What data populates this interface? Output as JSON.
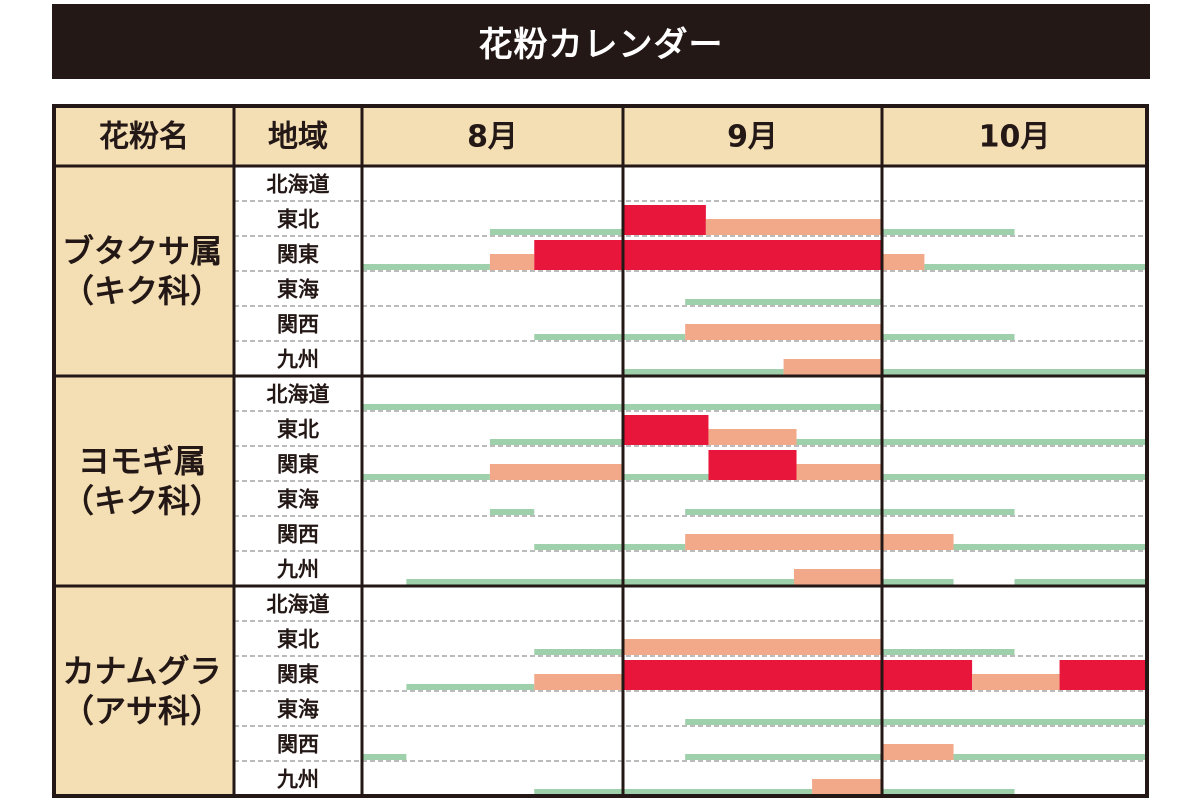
{
  "title": "花粉カレンダー",
  "headers": {
    "name": "花粉名",
    "region": "地域",
    "months": [
      "8月",
      "9月",
      "10月"
    ]
  },
  "colors": {
    "header_bg": "#f4deb4",
    "name_bg": "#f4deb4",
    "title_bg": "#231815",
    "low": "#9ed0ab",
    "mid": "#f2a98a",
    "high": "#e8163a",
    "grid": "#231815"
  },
  "legend_levels": [
    "low",
    "mid",
    "high"
  ],
  "chart_data": {
    "type": "table",
    "title": "花粉カレンダー",
    "months": [
      "8月",
      "9月",
      "10月"
    ],
    "x_unit": "month (0 = start of 8月, 3 = end of 10月)",
    "pollens": [
      {
        "name_lines": [
          "ブタクサ属",
          "（キク科）"
        ],
        "regions": [
          {
            "name": "北海道",
            "bars": []
          },
          {
            "name": "東北",
            "bars": [
              {
                "from": 0.49,
                "to": 1.0,
                "level": "low"
              },
              {
                "from": 1.0,
                "to": 1.32,
                "level": "high"
              },
              {
                "from": 1.32,
                "to": 2.0,
                "level": "mid"
              },
              {
                "from": 2.0,
                "to": 2.5,
                "level": "low"
              }
            ]
          },
          {
            "name": "関東",
            "bars": [
              {
                "from": 0.0,
                "to": 0.49,
                "level": "low"
              },
              {
                "from": 0.49,
                "to": 0.66,
                "level": "mid"
              },
              {
                "from": 0.66,
                "to": 2.0,
                "level": "high"
              },
              {
                "from": 2.0,
                "to": 2.16,
                "level": "mid"
              },
              {
                "from": 2.16,
                "to": 3.0,
                "level": "low"
              }
            ]
          },
          {
            "name": "東海",
            "bars": [
              {
                "from": 1.24,
                "to": 2.0,
                "level": "low"
              }
            ]
          },
          {
            "name": "関西",
            "bars": [
              {
                "from": 0.66,
                "to": 1.24,
                "level": "low"
              },
              {
                "from": 1.24,
                "to": 2.0,
                "level": "mid"
              },
              {
                "from": 2.0,
                "to": 2.5,
                "level": "low"
              }
            ]
          },
          {
            "name": "九州",
            "bars": [
              {
                "from": 1.0,
                "to": 1.62,
                "level": "low"
              },
              {
                "from": 1.62,
                "to": 2.0,
                "level": "mid"
              },
              {
                "from": 2.0,
                "to": 3.0,
                "level": "low"
              }
            ]
          }
        ]
      },
      {
        "name_lines": [
          "ヨモギ属",
          "（キク科）"
        ],
        "regions": [
          {
            "name": "北海道",
            "bars": [
              {
                "from": 0.0,
                "to": 2.0,
                "level": "low"
              }
            ]
          },
          {
            "name": "東北",
            "bars": [
              {
                "from": 0.49,
                "to": 1.0,
                "level": "low"
              },
              {
                "from": 1.0,
                "to": 1.33,
                "level": "high"
              },
              {
                "from": 1.33,
                "to": 1.67,
                "level": "mid"
              },
              {
                "from": 1.67,
                "to": 3.0,
                "level": "low"
              }
            ]
          },
          {
            "name": "関東",
            "bars": [
              {
                "from": 0.0,
                "to": 0.49,
                "level": "low"
              },
              {
                "from": 0.49,
                "to": 1.0,
                "level": "mid"
              },
              {
                "from": 1.0,
                "to": 1.33,
                "level": "low"
              },
              {
                "from": 1.33,
                "to": 1.67,
                "level": "high"
              },
              {
                "from": 1.67,
                "to": 2.0,
                "level": "mid"
              },
              {
                "from": 2.0,
                "to": 3.0,
                "level": "low"
              }
            ]
          },
          {
            "name": "東海",
            "bars": [
              {
                "from": 0.49,
                "to": 0.66,
                "level": "low"
              },
              {
                "from": 1.24,
                "to": 2.5,
                "level": "low"
              }
            ]
          },
          {
            "name": "関西",
            "bars": [
              {
                "from": 0.66,
                "to": 1.24,
                "level": "low"
              },
              {
                "from": 1.24,
                "to": 2.27,
                "level": "mid"
              },
              {
                "from": 2.27,
                "to": 3.0,
                "level": "low"
              }
            ]
          },
          {
            "name": "九州",
            "bars": [
              {
                "from": 0.17,
                "to": 1.66,
                "level": "low"
              },
              {
                "from": 1.66,
                "to": 2.0,
                "level": "mid"
              },
              {
                "from": 2.0,
                "to": 2.27,
                "level": "low"
              },
              {
                "from": 2.5,
                "to": 3.0,
                "level": "low"
              }
            ]
          }
        ]
      },
      {
        "name_lines": [
          "カナムグラ",
          "（アサ科）"
        ],
        "regions": [
          {
            "name": "北海道",
            "bars": []
          },
          {
            "name": "東北",
            "bars": [
              {
                "from": 0.66,
                "to": 1.0,
                "level": "low"
              },
              {
                "from": 1.0,
                "to": 2.0,
                "level": "mid"
              },
              {
                "from": 2.0,
                "to": 2.5,
                "level": "low"
              }
            ]
          },
          {
            "name": "関東",
            "bars": [
              {
                "from": 0.17,
                "to": 0.66,
                "level": "low"
              },
              {
                "from": 0.66,
                "to": 1.0,
                "level": "mid"
              },
              {
                "from": 1.0,
                "to": 2.34,
                "level": "high"
              },
              {
                "from": 2.34,
                "to": 2.67,
                "level": "mid"
              },
              {
                "from": 2.67,
                "to": 3.0,
                "level": "high"
              }
            ]
          },
          {
            "name": "東海",
            "bars": [
              {
                "from": 1.24,
                "to": 3.0,
                "level": "low"
              }
            ]
          },
          {
            "name": "関西",
            "bars": [
              {
                "from": 0.0,
                "to": 0.17,
                "level": "low"
              },
              {
                "from": 1.24,
                "to": 2.0,
                "level": "low"
              },
              {
                "from": 2.0,
                "to": 2.27,
                "level": "mid"
              },
              {
                "from": 2.27,
                "to": 3.0,
                "level": "low"
              }
            ]
          },
          {
            "name": "九州",
            "bars": [
              {
                "from": 0.66,
                "to": 1.0,
                "level": "low"
              },
              {
                "from": 1.0,
                "to": 1.73,
                "level": "low"
              },
              {
                "from": 1.73,
                "to": 2.0,
                "level": "mid"
              },
              {
                "from": 2.0,
                "to": 2.5,
                "level": "low"
              }
            ]
          }
        ]
      }
    ]
  }
}
